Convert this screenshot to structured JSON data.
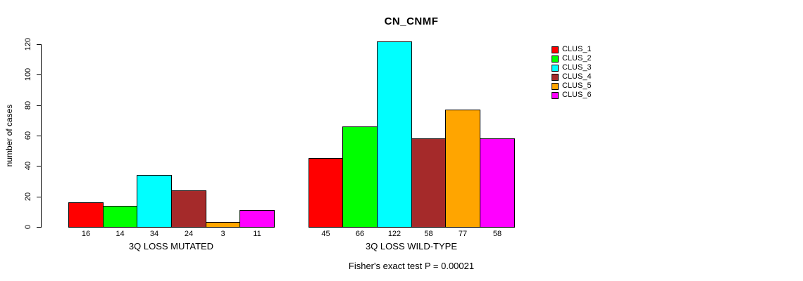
{
  "chart_data": {
    "type": "bar",
    "title": "CN_CNMF",
    "ylabel": "number of cases",
    "xlabel": "",
    "ylim": [
      0,
      120
    ],
    "yticks": [
      0,
      20,
      40,
      60,
      80,
      100,
      120
    ],
    "grid": false,
    "legend_position": "right-outside",
    "annotation": "Fisher's exact test P = 0.00021",
    "bar_value_labels_shown": true,
    "series": [
      {
        "name": "CLUS_1",
        "color": "#FF0000"
      },
      {
        "name": "CLUS_2",
        "color": "#00FF00"
      },
      {
        "name": "CLUS_3",
        "color": "#00FFFF"
      },
      {
        "name": "CLUS_4",
        "color": "#A52A2A"
      },
      {
        "name": "CLUS_5",
        "color": "#FFA500"
      },
      {
        "name": "CLUS_6",
        "color": "#FF00FF"
      }
    ],
    "groups": [
      {
        "label": "3Q LOSS MUTATED",
        "values": [
          16,
          14,
          34,
          24,
          3,
          11
        ]
      },
      {
        "label": "3Q LOSS WILD-TYPE",
        "values": [
          45,
          66,
          122,
          58,
          77,
          58
        ]
      }
    ]
  }
}
